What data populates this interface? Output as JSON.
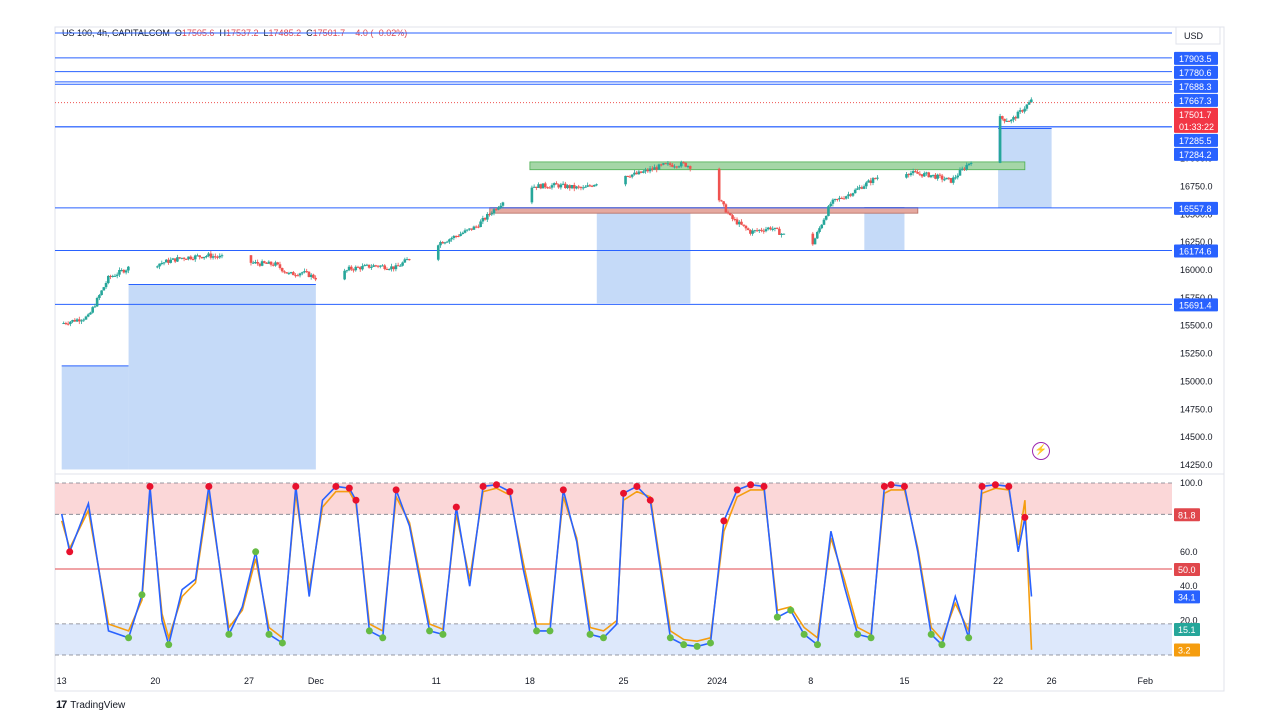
{
  "header": {
    "symbol": "US 100, 4h, CAPITALCOM",
    "open_label": "O",
    "open": "17505.6",
    "high_label": "H",
    "high": "17537.2",
    "low_label": "L",
    "low": "17485.2",
    "close_label": "C",
    "close": "17501.7",
    "change": "−4.0 (−0.02%)"
  },
  "currency": "USD",
  "footer": {
    "brand": "TradingView"
  },
  "colors": {
    "up": "#26a69a",
    "down": "#ef5350",
    "level_line": "#2962ff",
    "zone_green": "#a5d6a7",
    "zone_red": "#e5a9a0",
    "blue_fill": "#bbd3f7",
    "stoch_k": "#2962ff",
    "stoch_d": "#f59d0f",
    "ob_band": "#fbd7d8",
    "os_band": "#dde8fb",
    "mid_line": "#e0474c"
  },
  "chart_data": [
    {
      "type": "candlestick",
      "title": "US 100, 4h, CAPITALCOM",
      "ylim": [
        14250,
        18100
      ],
      "y_ticks": [
        14250,
        14500,
        14750,
        15000,
        15250,
        15500,
        15750,
        16000,
        16250,
        16500,
        16750,
        17000
      ],
      "y_tick_labels": [
        "14250.0",
        "14500.0",
        "14750.0",
        "15000.0",
        "15250.0",
        "15500.0",
        "15750.0",
        "16000.0",
        "16250.0",
        "16500.0",
        "16750.0",
        "17000.0"
      ],
      "x_ticks": [
        "13",
        "20",
        "27",
        "Dec",
        "11",
        "18",
        "25",
        "2024",
        "8",
        "15",
        "22",
        "26",
        "Feb"
      ],
      "x_tick_values": [
        0,
        7,
        14,
        19,
        28,
        35,
        42,
        49,
        56,
        63,
        70,
        74,
        81
      ],
      "xlim": [
        -0.5,
        83
      ],
      "price_path_days": [
        0,
        2,
        3.5,
        5,
        7,
        9,
        11,
        13,
        14.5,
        16,
        17,
        18,
        20,
        21.5,
        23.5,
        25,
        27,
        29,
        31,
        33,
        35,
        37,
        39,
        41,
        43,
        45,
        46.5,
        48,
        49,
        50,
        51.5,
        53,
        54.5,
        56,
        57.5,
        59,
        60.5,
        62,
        63.5,
        65,
        66.5,
        67.5,
        68.5,
        69.5,
        71,
        72.5
      ],
      "price_path": [
        15520,
        15580,
        15930,
        16020,
        16050,
        16110,
        16130,
        16090,
        16060,
        16050,
        15960,
        15980,
        15880,
        16010,
        16040,
        16020,
        16190,
        16280,
        16390,
        16620,
        16750,
        16760,
        16730,
        16840,
        16860,
        16940,
        16950,
        16890,
        16660,
        16470,
        16340,
        16380,
        16280,
        16200,
        16600,
        16690,
        16800,
        16900,
        16870,
        16850,
        16800,
        16920,
        17050,
        17380,
        17340,
        17520
      ],
      "levels": [
        {
          "value": 17903.5,
          "label": "17903.5"
        },
        {
          "value": 17780.6,
          "label": "17780.6"
        },
        {
          "value": 17688.3,
          "label": "17688.3"
        },
        {
          "value": 17667.3,
          "label": "17667.3"
        },
        {
          "value": 17285.5,
          "label": "17285.5"
        },
        {
          "value": 17284.2,
          "label": "17284.2"
        },
        {
          "value": 16557.8,
          "label": "16557.8"
        },
        {
          "value": 16174.6,
          "label": "16174.6"
        },
        {
          "value": 15691.4,
          "label": "15691.4"
        }
      ],
      "current_price": {
        "value": 17501.7,
        "label": "17501.7",
        "countdown": "01:33:22"
      },
      "zones": [
        {
          "kind": "resistance",
          "from_day": 35,
          "to_day": 72,
          "low": 16900,
          "high": 16970
        },
        {
          "kind": "support",
          "from_day": 32,
          "to_day": 64,
          "low": 16510,
          "high": 16560
        }
      ],
      "blue_blocks": [
        {
          "from_day": 0,
          "to_day": 5,
          "low": 14210,
          "high": 15140
        },
        {
          "from_day": 5,
          "to_day": 19,
          "low": 14210,
          "high": 15870
        },
        {
          "from_day": 40,
          "to_day": 47,
          "low": 15700,
          "high": 16540
        },
        {
          "from_day": 60,
          "to_day": 63,
          "low": 16180,
          "high": 16560
        },
        {
          "from_day": 70,
          "to_day": 74,
          "low": 16560,
          "high": 17270
        }
      ]
    },
    {
      "type": "line",
      "title": "Stochastic",
      "ylim": [
        0,
        100
      ],
      "y_ticks": [
        100,
        60,
        40,
        20
      ],
      "y_tick_labels": [
        "100.0",
        "60.0",
        "40.0",
        "20.0"
      ],
      "overbought": 81.8,
      "midline": 50.0,
      "oversold": 15.1,
      "badges": [
        {
          "value": 81.8,
          "label": "81.8",
          "color": "#e0474c"
        },
        {
          "value": 50.0,
          "label": "50.0",
          "color": "#e0474c"
        },
        {
          "value": 34.1,
          "label": "34.1",
          "color": "#2962ff"
        },
        {
          "value": 15.1,
          "label": "15.1",
          "color": "#26a69a"
        },
        {
          "value": 3.2,
          "label": "3.2",
          "color": "#f59d0f"
        }
      ],
      "series": [
        {
          "name": "",
          "x": [
            0,
            0.6,
            2,
            3.5,
            5,
            6,
            6.6,
            7.5,
            8,
            9,
            10,
            11,
            12.5,
            13.5,
            14.5,
            15.5,
            16.5,
            17.5,
            18.5,
            19.5,
            20.5,
            21.5,
            22,
            23,
            24,
            25,
            26,
            27.5,
            28.5,
            29.5,
            30.5,
            31.5,
            32.5,
            33.5,
            34.5,
            35.5,
            36.5,
            37.5,
            38.5,
            39.5,
            40.5,
            41.5,
            42,
            43,
            44,
            45.5,
            46.5,
            47.5,
            48.5,
            49.5,
            50.5,
            51.5,
            52.5,
            53.5,
            54.5,
            55.5,
            56.5,
            57.5,
            58.5,
            59.5,
            60.5,
            61.5,
            62,
            63,
            64,
            65,
            65.8,
            66.8,
            67.8,
            68.8,
            69.8,
            70.8,
            71.5,
            72,
            72.5
          ],
          "values": [
            82,
            60,
            88,
            14,
            10,
            35,
            98,
            20,
            6,
            38,
            44,
            98,
            12,
            28,
            60,
            12,
            7,
            98,
            34,
            90,
            98,
            97,
            90,
            14,
            10,
            96,
            75,
            14,
            12,
            86,
            40,
            98,
            99,
            95,
            50,
            14,
            14,
            96,
            66,
            12,
            10,
            18,
            94,
            98,
            90,
            10,
            6,
            5,
            7,
            78,
            96,
            99,
            98,
            22,
            26,
            12,
            6,
            72,
            40,
            12,
            10,
            98,
            99,
            98,
            60,
            12,
            6,
            34,
            10,
            98,
            99,
            98,
            60,
            80,
            34
          ]
        },
        {
          "name": "",
          "x": [
            0,
            0.6,
            2,
            3.5,
            5,
            6,
            6.6,
            7.5,
            8,
            9,
            10,
            11,
            12.5,
            13.5,
            14.5,
            15.5,
            16.5,
            17.5,
            18.5,
            19.5,
            20.5,
            21.5,
            22,
            23,
            24,
            25,
            26,
            27.5,
            28.5,
            29.5,
            30.5,
            31.5,
            32.5,
            33.5,
            34.5,
            35.5,
            36.5,
            37.5,
            38.5,
            39.5,
            40.5,
            41.5,
            42,
            43,
            44,
            45.5,
            46.5,
            47.5,
            48.5,
            49.5,
            50.5,
            51.5,
            52.5,
            53.5,
            54.5,
            55.5,
            56.5,
            57.5,
            58.5,
            59.5,
            60.5,
            61.5,
            62,
            63,
            64,
            65,
            65.8,
            66.8,
            67.8,
            68.8,
            69.8,
            70.8,
            71.5,
            72,
            72.5
          ],
          "values": [
            78,
            62,
            84,
            18,
            14,
            32,
            94,
            24,
            10,
            34,
            42,
            94,
            16,
            26,
            56,
            16,
            10,
            94,
            38,
            86,
            95,
            95,
            88,
            18,
            14,
            92,
            77,
            18,
            15,
            82,
            44,
            95,
            97,
            93,
            54,
            18,
            18,
            92,
            68,
            16,
            14,
            20,
            90,
            95,
            92,
            14,
            9,
            8,
            10,
            72,
            92,
            96,
            96,
            26,
            28,
            16,
            10,
            68,
            44,
            16,
            12,
            94,
            96,
            96,
            62,
            16,
            9,
            30,
            14,
            94,
            97,
            96,
            64,
            90,
            3
          ]
        }
      ],
      "markers_overbought_days": [
        0.6,
        6.6,
        11,
        17.5,
        20.5,
        21.5,
        22,
        25,
        29.5,
        31.5,
        32.5,
        33.5,
        37.5,
        42,
        43,
        44,
        49.5,
        50.5,
        51.5,
        52.5,
        61.5,
        62,
        63,
        68.8,
        69.8,
        70.8,
        72
      ],
      "markers_oversold_days": [
        5,
        6,
        8,
        12.5,
        14.5,
        15.5,
        16.5,
        23,
        24,
        27.5,
        28.5,
        35.5,
        36.5,
        39.5,
        40.5,
        45.5,
        46.5,
        47.5,
        48.5,
        53.5,
        54.5,
        55.5,
        56.5,
        59.5,
        60.5,
        65,
        65.8,
        67.8
      ]
    }
  ]
}
